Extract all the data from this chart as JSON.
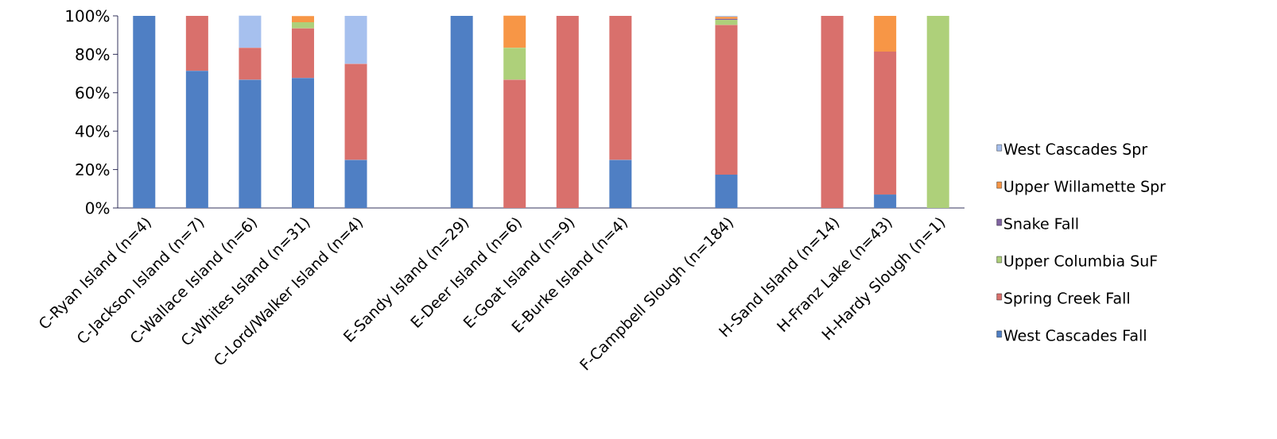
{
  "chart_data": {
    "type": "bar",
    "stacked": true,
    "categories": [
      "C-Ryan Island (n=4)",
      "C-Jackson Island (n=7)",
      "C-Wallace Island (n=6)",
      "C-Whites Island (n=31)",
      "C-Lord/Walker Island (n=4)",
      null,
      "E-Sandy Island (n=29)",
      "E-Deer Island (n=6)",
      "E-Goat Island (n=9)",
      "E-Burke Island (n=4)",
      null,
      "F-Campbell Slough (n=184)",
      null,
      "H-Sand Island (n=14)",
      "H-Franz Lake (n=43)",
      "H-Hardy Slough (n=1)"
    ],
    "series": [
      {
        "name": "West Cascades Fall",
        "color": "#4f7fc4",
        "values": [
          100,
          71.4,
          66.7,
          67.7,
          25,
          null,
          100,
          0,
          0,
          25,
          null,
          17.4,
          null,
          0,
          7.0,
          0
        ]
      },
      {
        "name": "Spring Creek Fall",
        "color": "#d9706c",
        "values": [
          0,
          28.6,
          16.7,
          25.8,
          50,
          null,
          0,
          66.7,
          100,
          75,
          null,
          77.8,
          null,
          100,
          74.4,
          0
        ]
      },
      {
        "name": "Upper Columbia SuF",
        "color": "#aed07a",
        "values": [
          0,
          0,
          0,
          3.2,
          0,
          null,
          0,
          16.7,
          0,
          0,
          null,
          2.7,
          null,
          0,
          0,
          100
        ]
      },
      {
        "name": "Snake Fall",
        "color": "#8064a2",
        "values": [
          0,
          0,
          0,
          0,
          0,
          null,
          0,
          0,
          0,
          0,
          null,
          0.5,
          null,
          0,
          0,
          0
        ]
      },
      {
        "name": "Upper Willamette Spr",
        "color": "#f79646",
        "values": [
          0,
          0,
          0,
          3.2,
          0,
          null,
          0,
          16.7,
          0,
          0,
          null,
          1.1,
          null,
          0,
          18.6,
          0
        ]
      },
      {
        "name": "West Cascades Spr",
        "color": "#a6c0ee",
        "values": [
          0,
          0,
          16.7,
          0,
          25,
          null,
          0,
          0,
          0,
          0,
          null,
          0.5,
          null,
          0,
          0,
          0
        ]
      }
    ],
    "ylim": [
      0,
      100
    ],
    "yticks": [
      {
        "value": 0,
        "label": "0%"
      },
      {
        "value": 20,
        "label": "20%"
      },
      {
        "value": 40,
        "label": "40%"
      },
      {
        "value": 60,
        "label": "60%"
      },
      {
        "value": 80,
        "label": "80%"
      },
      {
        "value": 100,
        "label": "100%"
      }
    ],
    "legend": "right",
    "grid": false
  }
}
